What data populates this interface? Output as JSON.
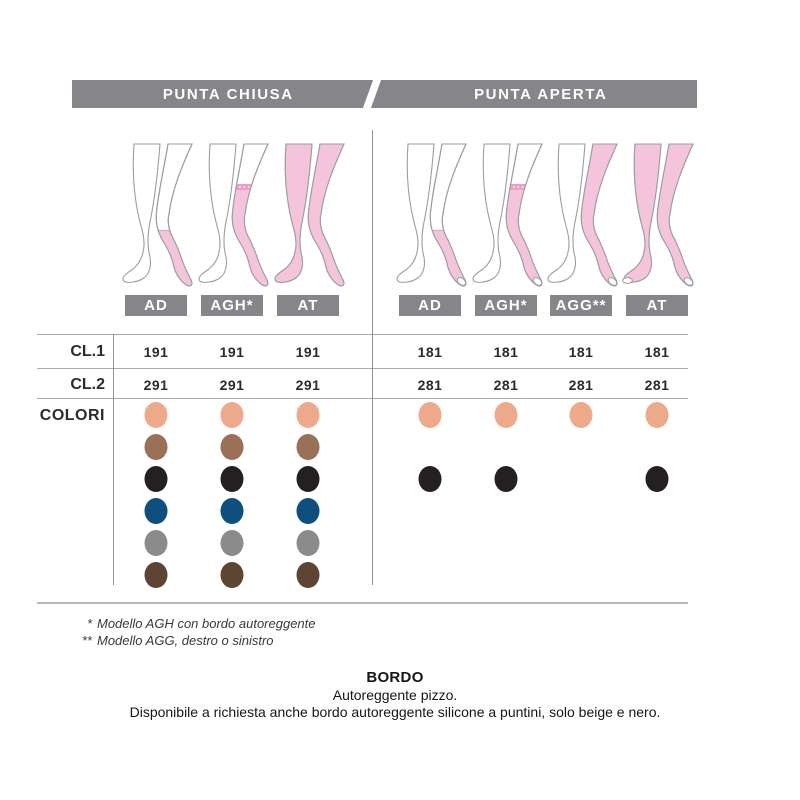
{
  "header": {
    "left": "PUNTA CHIUSA",
    "right": "PUNTA APERTA"
  },
  "row_labels": {
    "cl1": "CL.1",
    "cl2": "CL.2",
    "colors": "COLORI"
  },
  "colors": [
    {
      "name": "beige",
      "hex": "#EDAA8B"
    },
    {
      "name": "marrone",
      "hex": "#9A7058"
    },
    {
      "name": "nero",
      "hex": "#242021"
    },
    {
      "name": "blu",
      "hex": "#0E4F7E"
    },
    {
      "name": "grigio",
      "hex": "#8B8B8D"
    },
    {
      "name": "moro-scuro",
      "hex": "#5E4433"
    }
  ],
  "groups": [
    {
      "name": "PUNTA CHIUSA",
      "toe": "closed",
      "models": [
        {
          "code": "AD",
          "coverage": "knee"
        },
        {
          "code": "AGH*",
          "coverage": "thigh"
        },
        {
          "code": "AT",
          "coverage": "tights"
        }
      ],
      "cl1": [
        "191",
        "191",
        "191"
      ],
      "cl2": [
        "291",
        "291",
        "291"
      ],
      "color_matrix": [
        [
          1,
          1,
          1
        ],
        [
          1,
          1,
          1
        ],
        [
          1,
          1,
          1
        ],
        [
          1,
          1,
          1
        ],
        [
          1,
          1,
          1
        ],
        [
          1,
          1,
          1
        ]
      ]
    },
    {
      "name": "PUNTA APERTA",
      "toe": "open",
      "models": [
        {
          "code": "AD",
          "coverage": "knee"
        },
        {
          "code": "AGH*",
          "coverage": "thigh"
        },
        {
          "code": "AGG**",
          "coverage": "hip"
        },
        {
          "code": "AT",
          "coverage": "tights"
        }
      ],
      "cl1": [
        "181",
        "181",
        "181",
        "181"
      ],
      "cl2": [
        "281",
        "281",
        "281",
        "281"
      ],
      "color_matrix": [
        [
          1,
          1,
          1,
          1
        ],
        [
          0,
          0,
          0,
          0
        ],
        [
          1,
          1,
          0,
          1
        ],
        [
          0,
          0,
          0,
          0
        ],
        [
          0,
          0,
          0,
          0
        ],
        [
          0,
          0,
          0,
          0
        ]
      ]
    }
  ],
  "footnote_marks": [
    "*",
    "**"
  ],
  "footnotes": [
    "Modello AGH con bordo autoreggente",
    "Modello AGG, destro o sinistro"
  ],
  "bordo": {
    "title": "BORDO",
    "line1": "Autoreggente pizzo.",
    "line2": "Disponibile a richiesta anche bordo autoreggente silicone a puntini, solo beige e nero."
  },
  "artwork": {
    "bar_gray": "#85858A",
    "stocking_pink": "#F4C4DB",
    "band_pink": "#EC9EC6",
    "outline_gray": "#9C9CA2"
  }
}
